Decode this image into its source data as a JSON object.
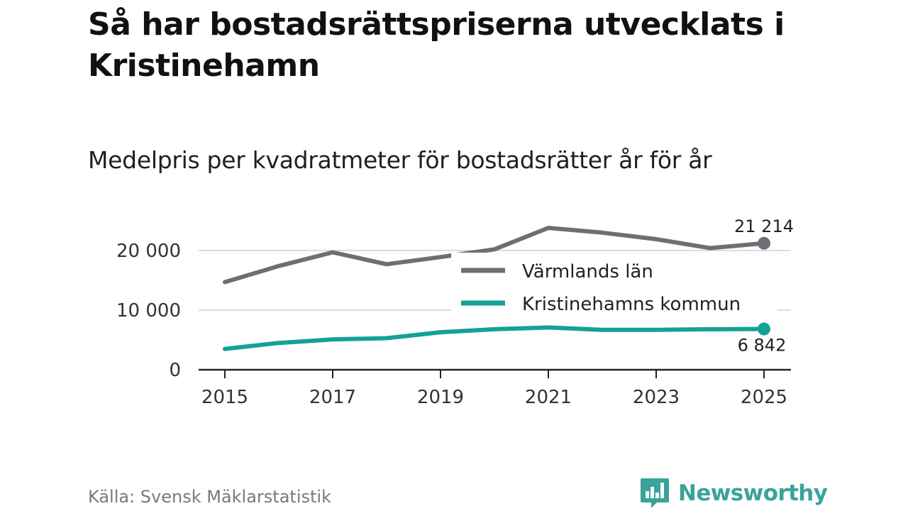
{
  "title": "Så har bostadsrättspriserna utvecklats i Kristinehamn",
  "subtitle": "Medelpris per kvadratmeter för bostadsrätter år för år",
  "source": "Källa: Svensk Mäklarstatistik",
  "brand": {
    "name": "Newsworthy",
    "color": "#3aa39a"
  },
  "chart_data": {
    "type": "line",
    "title": "Så har bostadsrättspriserna utvecklats i Kristinehamn",
    "subtitle": "Medelpris per kvadratmeter för bostadsrätter år för år",
    "xlabel": "",
    "ylabel": "",
    "x": [
      2015,
      2016,
      2017,
      2018,
      2019,
      2020,
      2021,
      2022,
      2023,
      2024,
      2025
    ],
    "x_ticks": [
      "2015",
      "2017",
      "2019",
      "2021",
      "2023",
      "2025"
    ],
    "y_ticks": [
      "0",
      "10 000",
      "20 000"
    ],
    "y_tick_values": [
      0,
      10000,
      20000
    ],
    "ylim": [
      0,
      25000
    ],
    "grid": true,
    "legend_position": "center-right",
    "series": [
      {
        "name": "Värmlands län",
        "color": "#6f6e75",
        "values": [
          14700,
          17400,
          19700,
          17700,
          18900,
          20200,
          23800,
          23000,
          21900,
          20400,
          21214
        ],
        "end_label": "21 214"
      },
      {
        "name": "Kristinehamns kommun",
        "color": "#13a296",
        "values": [
          3500,
          4500,
          5100,
          5300,
          6300,
          6800,
          7100,
          6700,
          6700,
          6800,
          6842
        ],
        "end_label": "6 842"
      }
    ]
  }
}
